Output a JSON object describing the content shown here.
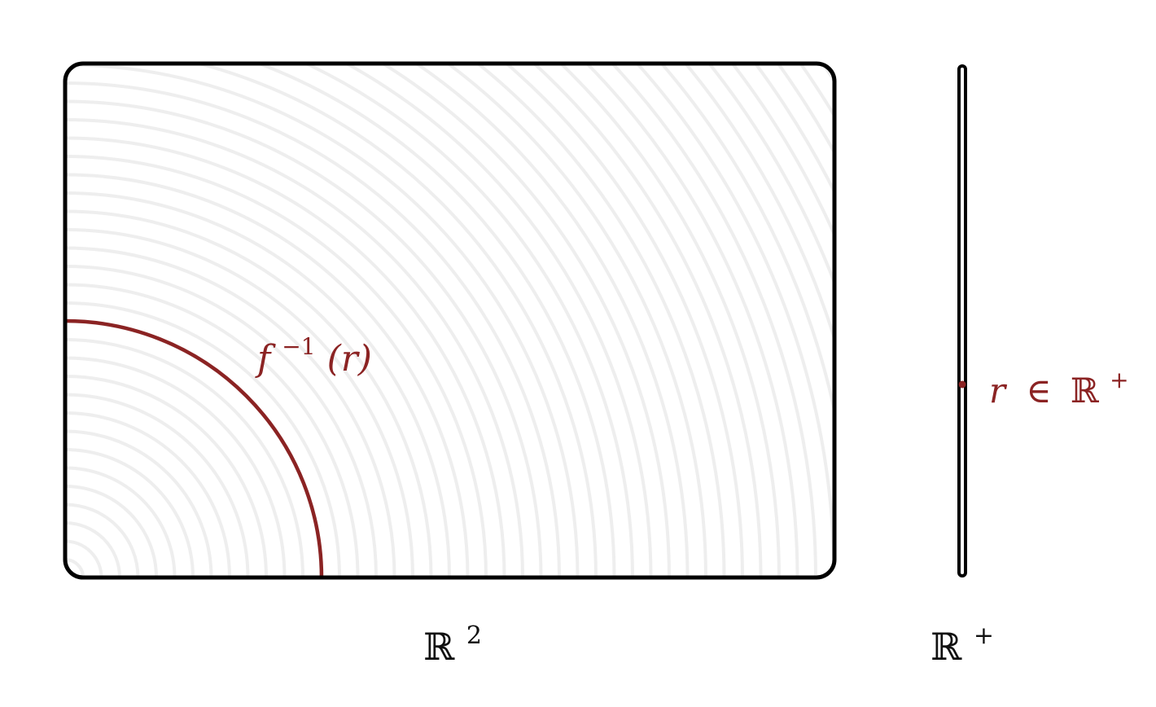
{
  "colors": {
    "accent": "#8b2323",
    "stroke": "#000000",
    "contour": "#eeeeee",
    "background": "#ffffff"
  },
  "domain_label": {
    "base": "ℝ",
    "sup": "2"
  },
  "codomain_label": {
    "base": "ℝ",
    "sup": "+"
  },
  "preimage_label": {
    "f": "f",
    "sup": "−1",
    "arg": "(r)"
  },
  "point_label": {
    "r": "r",
    "in": "∈",
    "base": "ℝ",
    "sup": "+"
  }
}
